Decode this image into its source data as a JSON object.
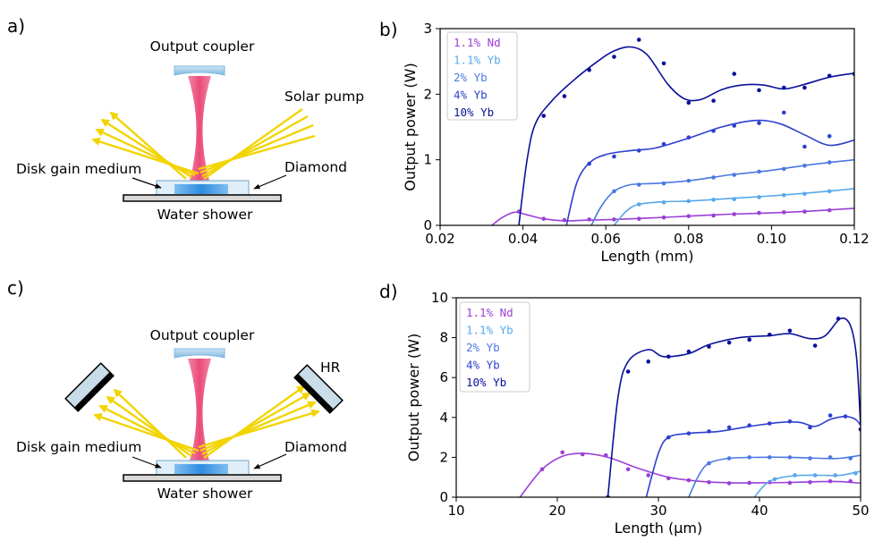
{
  "panels": {
    "a": {
      "label": "a)",
      "output_coupler": "Output coupler",
      "solar_pump": "Solar pump",
      "disk_gain_medium": "Disk gain medium",
      "diamond": "Diamond",
      "water_shower": "Water shower"
    },
    "b": {
      "label": "b)"
    },
    "c": {
      "label": "c)",
      "output_coupler": "Output coupler",
      "hr": "HR",
      "disk_gain_medium": "Disk gain medium",
      "diamond": "Diamond",
      "water_shower": "Water shower"
    },
    "d": {
      "label": "d)"
    }
  },
  "colors": {
    "nd": "#9b3fd6",
    "yb11": "#58a8ec",
    "yb2": "#4a78e2",
    "yb4": "#2d3fd0",
    "yb10": "#0a109a",
    "beam": "#ee4f7c",
    "pump": "#f2d400",
    "disk": "#4fa3e8"
  },
  "chart_data": [
    {
      "type": "line",
      "panel": "b",
      "xlabel": "Length (mm)",
      "ylabel": "Output power (W)",
      "xlim": [
        0.02,
        0.12
      ],
      "ylim": [
        0,
        3
      ],
      "xticks": [
        0.02,
        0.04,
        0.06,
        0.08,
        0.1,
        0.12
      ],
      "xtick_labels": [
        "0.02",
        "0.04",
        "0.06",
        "0.08",
        "0.10",
        "0.12"
      ],
      "yticks": [
        0,
        1,
        2,
        3
      ],
      "ytick_labels": [
        "0",
        "1",
        "2",
        "3"
      ],
      "legend": {
        "location": "top-left",
        "entries": [
          "1.1% Nd",
          "1.1% Yb",
          "2% Yb",
          "4% Yb",
          "10% Yb"
        ]
      },
      "series": [
        {
          "name": "1.1% Nd",
          "color": "#9b3fd6",
          "points": [
            [
              0.039,
              0.21
            ],
            [
              0.045,
              0.1
            ],
            [
              0.05,
              0.08
            ],
            [
              0.056,
              0.09
            ],
            [
              0.062,
              0.09
            ],
            [
              0.068,
              0.1
            ],
            [
              0.074,
              0.12
            ],
            [
              0.08,
              0.14
            ],
            [
              0.086,
              0.15
            ],
            [
              0.091,
              0.17
            ],
            [
              0.097,
              0.19
            ],
            [
              0.103,
              0.2
            ],
            [
              0.108,
              0.21
            ],
            [
              0.114,
              0.23
            ]
          ],
          "curve": [
            [
              0.0325,
              0.0
            ],
            [
              0.035,
              0.12
            ],
            [
              0.038,
              0.2
            ],
            [
              0.041,
              0.16
            ],
            [
              0.045,
              0.1
            ],
            [
              0.05,
              0.07
            ],
            [
              0.056,
              0.08
            ],
            [
              0.062,
              0.09
            ],
            [
              0.07,
              0.11
            ],
            [
              0.08,
              0.14
            ],
            [
              0.09,
              0.17
            ],
            [
              0.1,
              0.19
            ],
            [
              0.11,
              0.22
            ],
            [
              0.12,
              0.26
            ]
          ]
        },
        {
          "name": "1.1% Yb",
          "color": "#58a8ec",
          "points": [
            [
              0.068,
              0.32
            ],
            [
              0.074,
              0.35
            ],
            [
              0.08,
              0.37
            ],
            [
              0.086,
              0.39
            ],
            [
              0.091,
              0.4
            ],
            [
              0.097,
              0.43
            ],
            [
              0.103,
              0.46
            ],
            [
              0.108,
              0.48
            ],
            [
              0.114,
              0.52
            ]
          ],
          "curve": [
            [
              0.062,
              0.0
            ],
            [
              0.065,
              0.22
            ],
            [
              0.068,
              0.32
            ],
            [
              0.074,
              0.36
            ],
            [
              0.08,
              0.37
            ],
            [
              0.09,
              0.41
            ],
            [
              0.1,
              0.45
            ],
            [
              0.11,
              0.5
            ],
            [
              0.12,
              0.56
            ]
          ]
        },
        {
          "name": "2% Yb",
          "color": "#4a78e2",
          "points": [
            [
              0.062,
              0.52
            ],
            [
              0.068,
              0.62
            ],
            [
              0.074,
              0.64
            ],
            [
              0.08,
              0.68
            ],
            [
              0.086,
              0.73
            ],
            [
              0.091,
              0.77
            ],
            [
              0.097,
              0.82
            ],
            [
              0.103,
              0.86
            ],
            [
              0.108,
              0.91
            ],
            [
              0.114,
              0.96
            ]
          ],
          "curve": [
            [
              0.0565,
              0.0
            ],
            [
              0.059,
              0.3
            ],
            [
              0.062,
              0.52
            ],
            [
              0.066,
              0.62
            ],
            [
              0.072,
              0.64
            ],
            [
              0.08,
              0.68
            ],
            [
              0.09,
              0.77
            ],
            [
              0.1,
              0.84
            ],
            [
              0.11,
              0.93
            ],
            [
              0.12,
              1.0
            ]
          ]
        },
        {
          "name": "4% Yb",
          "color": "#2d3fd0",
          "points": [
            [
              0.056,
              0.94
            ],
            [
              0.062,
              1.05
            ],
            [
              0.068,
              1.14
            ],
            [
              0.074,
              1.24
            ],
            [
              0.08,
              1.34
            ],
            [
              0.086,
              1.44
            ],
            [
              0.091,
              1.52
            ],
            [
              0.097,
              1.56
            ],
            [
              0.103,
              1.72
            ],
            [
              0.108,
              1.2
            ],
            [
              0.114,
              1.36
            ]
          ],
          "curve": [
            [
              0.0505,
              0.0
            ],
            [
              0.053,
              0.65
            ],
            [
              0.056,
              0.95
            ],
            [
              0.06,
              1.08
            ],
            [
              0.066,
              1.14
            ],
            [
              0.072,
              1.18
            ],
            [
              0.08,
              1.33
            ],
            [
              0.088,
              1.5
            ],
            [
              0.096,
              1.6
            ],
            [
              0.102,
              1.55
            ],
            [
              0.108,
              1.38
            ],
            [
              0.114,
              1.22
            ],
            [
              0.12,
              1.3
            ]
          ]
        },
        {
          "name": "10% Yb",
          "color": "#0a109a",
          "points": [
            [
              0.045,
              1.67
            ],
            [
              0.05,
              1.97
            ],
            [
              0.056,
              2.37
            ],
            [
              0.062,
              2.57
            ],
            [
              0.068,
              2.83
            ],
            [
              0.074,
              2.47
            ],
            [
              0.08,
              1.87
            ],
            [
              0.086,
              1.9
            ],
            [
              0.091,
              2.31
            ],
            [
              0.097,
              2.06
            ],
            [
              0.103,
              2.1
            ],
            [
              0.108,
              2.1
            ],
            [
              0.114,
              2.28
            ],
            [
              0.12,
              2.31
            ]
          ],
          "curve": [
            [
              0.039,
              0.0
            ],
            [
              0.041,
              1.0
            ],
            [
              0.043,
              1.55
            ],
            [
              0.047,
              1.9
            ],
            [
              0.052,
              2.2
            ],
            [
              0.058,
              2.5
            ],
            [
              0.062,
              2.66
            ],
            [
              0.066,
              2.72
            ],
            [
              0.07,
              2.6
            ],
            [
              0.075,
              2.15
            ],
            [
              0.079,
              1.93
            ],
            [
              0.083,
              1.92
            ],
            [
              0.088,
              2.07
            ],
            [
              0.093,
              2.14
            ],
            [
              0.098,
              2.14
            ],
            [
              0.103,
              2.08
            ],
            [
              0.108,
              2.15
            ],
            [
              0.114,
              2.26
            ],
            [
              0.12,
              2.32
            ]
          ]
        }
      ]
    },
    {
      "type": "line",
      "panel": "d",
      "xlabel": "Length (μm)",
      "ylabel": "Output power (W)",
      "xlim": [
        10,
        50
      ],
      "ylim": [
        0,
        10
      ],
      "xticks": [
        10,
        20,
        30,
        40,
        50
      ],
      "xtick_labels": [
        "10",
        "20",
        "30",
        "40",
        "50"
      ],
      "yticks": [
        0,
        2,
        4,
        6,
        8,
        10
      ],
      "ytick_labels": [
        "0",
        "2",
        "4",
        "6",
        "8",
        "10"
      ],
      "legend": {
        "location": "top-left",
        "entries": [
          "1.1% Nd",
          "1.1% Yb",
          "2% Yb",
          "4% Yb",
          "10% Yb"
        ]
      },
      "series": [
        {
          "name": "1.1% Nd",
          "color": "#9b3fd6",
          "points": [
            [
              18.5,
              1.4
            ],
            [
              20.5,
              2.25
            ],
            [
              22.5,
              2.15
            ],
            [
              24.8,
              2.1
            ],
            [
              27,
              1.4
            ],
            [
              29,
              1.1
            ],
            [
              31,
              0.95
            ],
            [
              33,
              0.85
            ],
            [
              35,
              0.75
            ],
            [
              37,
              0.7
            ],
            [
              39,
              0.72
            ],
            [
              41,
              0.75
            ],
            [
              43,
              0.72
            ],
            [
              45,
              0.75
            ],
            [
              47,
              0.8
            ],
            [
              49,
              0.8
            ]
          ],
          "curve": [
            [
              16.3,
              0.0
            ],
            [
              18.5,
              1.4
            ],
            [
              20.5,
              2.05
            ],
            [
              22.5,
              2.2
            ],
            [
              25,
              2.0
            ],
            [
              28,
              1.45
            ],
            [
              31,
              1.0
            ],
            [
              34,
              0.8
            ],
            [
              37,
              0.72
            ],
            [
              40,
              0.72
            ],
            [
              43,
              0.74
            ],
            [
              46,
              0.78
            ],
            [
              48,
              0.78
            ],
            [
              50,
              0.7
            ]
          ]
        },
        {
          "name": "1.1% Yb",
          "color": "#58a8ec",
          "points": [
            [
              41.5,
              0.9
            ],
            [
              43.5,
              1.1
            ],
            [
              45.5,
              1.1
            ],
            [
              47.5,
              1.1
            ],
            [
              49.5,
              1.2
            ]
          ],
          "curve": [
            [
              39.5,
              0.0
            ],
            [
              40.5,
              0.6
            ],
            [
              41.5,
              0.9
            ],
            [
              43.5,
              1.08
            ],
            [
              46,
              1.1
            ],
            [
              48,
              1.1
            ],
            [
              50,
              1.3
            ]
          ]
        },
        {
          "name": "2% Yb",
          "color": "#4a78e2",
          "points": [
            [
              35,
              1.7
            ],
            [
              37,
              1.95
            ],
            [
              39,
              2.0
            ],
            [
              41,
              2.0
            ],
            [
              43,
              2.0
            ],
            [
              45,
              1.95
            ],
            [
              47,
              2.0
            ],
            [
              49,
              1.95
            ]
          ],
          "curve": [
            [
              33,
              0.0
            ],
            [
              34,
              1.1
            ],
            [
              35,
              1.7
            ],
            [
              37,
              1.95
            ],
            [
              40,
              2.0
            ],
            [
              43,
              2.0
            ],
            [
              46,
              1.95
            ],
            [
              48,
              1.95
            ],
            [
              50,
              2.1
            ]
          ]
        },
        {
          "name": "4% Yb",
          "color": "#2d3fd0",
          "points": [
            [
              31,
              3.0
            ],
            [
              33,
              3.2
            ],
            [
              35,
              3.3
            ],
            [
              37,
              3.5
            ],
            [
              39,
              3.6
            ],
            [
              41,
              3.7
            ],
            [
              43,
              3.8
            ],
            [
              45,
              3.5
            ],
            [
              47,
              4.1
            ],
            [
              48.5,
              4.05
            ]
          ],
          "curve": [
            [
              28.8,
              0.0
            ],
            [
              30,
              2.2
            ],
            [
              31,
              3.0
            ],
            [
              33,
              3.2
            ],
            [
              36,
              3.3
            ],
            [
              39,
              3.55
            ],
            [
              42,
              3.75
            ],
            [
              44,
              3.75
            ],
            [
              45.5,
              3.55
            ],
            [
              47,
              3.9
            ],
            [
              48.5,
              4.05
            ],
            [
              49.5,
              3.9
            ],
            [
              50,
              3.6
            ]
          ]
        },
        {
          "name": "10% Yb",
          "color": "#0a109a",
          "points": [
            [
              25,
              0.0
            ],
            [
              27,
              6.3
            ],
            [
              29,
              6.8
            ],
            [
              31,
              7.05
            ],
            [
              33,
              7.3
            ],
            [
              35,
              7.55
            ],
            [
              37,
              7.75
            ],
            [
              39,
              7.9
            ],
            [
              41,
              8.15
            ],
            [
              43,
              8.35
            ],
            [
              45.5,
              7.6
            ],
            [
              47.8,
              8.95
            ],
            [
              50,
              3.4
            ]
          ],
          "curve": [
            [
              25,
              0.0
            ],
            [
              26,
              5.0
            ],
            [
              27,
              6.8
            ],
            [
              29,
              7.4
            ],
            [
              30.5,
              7.05
            ],
            [
              33,
              7.2
            ],
            [
              35,
              7.65
            ],
            [
              38,
              8.0
            ],
            [
              41,
              8.1
            ],
            [
              43,
              8.2
            ],
            [
              45,
              7.95
            ],
            [
              46.5,
              8.1
            ],
            [
              48,
              8.95
            ],
            [
              49,
              8.6
            ],
            [
              49.6,
              7.0
            ],
            [
              50,
              3.6
            ]
          ]
        }
      ]
    }
  ]
}
